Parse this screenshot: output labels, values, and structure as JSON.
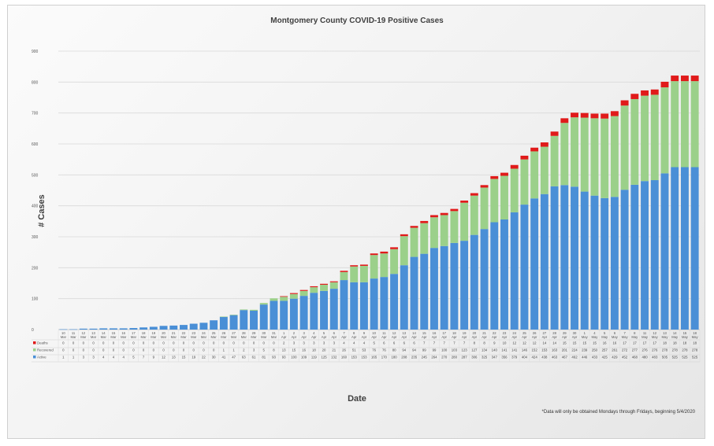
{
  "chart_data": {
    "type": "bar",
    "stacked": true,
    "title": "Montgomery County COVID-19 Positive Cases",
    "ylabel": "# Cases",
    "xlabel": "Date",
    "note": "*Data will only be obtained Mondays through Fridays, beginning 5/4/2020",
    "ylim": [
      0,
      900
    ],
    "yticks": [
      0,
      100,
      200,
      300,
      400,
      500,
      600,
      700,
      800,
      900
    ],
    "grid": true,
    "legend": "table-below",
    "categories": [
      {
        "day": "10",
        "month": "Mar"
      },
      {
        "day": "11",
        "month": "Mar"
      },
      {
        "day": "12",
        "month": "Mar"
      },
      {
        "day": "13",
        "month": "Mar"
      },
      {
        "day": "14",
        "month": "Mar"
      },
      {
        "day": "15",
        "month": "Mar"
      },
      {
        "day": "16",
        "month": "Mar"
      },
      {
        "day": "17",
        "month": "Mar"
      },
      {
        "day": "18",
        "month": "Mar"
      },
      {
        "day": "19",
        "month": "Mar"
      },
      {
        "day": "20",
        "month": "Mar"
      },
      {
        "day": "21",
        "month": "Mar"
      },
      {
        "day": "22",
        "month": "Mar"
      },
      {
        "day": "23",
        "month": "Mar"
      },
      {
        "day": "24",
        "month": "Mar"
      },
      {
        "day": "25",
        "month": "Mar"
      },
      {
        "day": "26",
        "month": "Mar"
      },
      {
        "day": "27",
        "month": "Mar"
      },
      {
        "day": "28",
        "month": "Mar"
      },
      {
        "day": "29",
        "month": "Mar"
      },
      {
        "day": "30",
        "month": "Mar"
      },
      {
        "day": "31",
        "month": "Mar"
      },
      {
        "day": "1",
        "month": "Apr"
      },
      {
        "day": "2",
        "month": "Apr"
      },
      {
        "day": "3",
        "month": "Apr"
      },
      {
        "day": "4",
        "month": "Apr"
      },
      {
        "day": "5",
        "month": "Apr"
      },
      {
        "day": "6",
        "month": "Apr"
      },
      {
        "day": "7",
        "month": "Apr"
      },
      {
        "day": "8",
        "month": "Apr"
      },
      {
        "day": "9",
        "month": "Apr"
      },
      {
        "day": "10",
        "month": "Apr"
      },
      {
        "day": "11",
        "month": "Apr"
      },
      {
        "day": "12",
        "month": "Apr"
      },
      {
        "day": "13",
        "month": "Apr"
      },
      {
        "day": "14",
        "month": "Apr"
      },
      {
        "day": "15",
        "month": "Apr"
      },
      {
        "day": "16",
        "month": "Apr"
      },
      {
        "day": "17",
        "month": "Apr"
      },
      {
        "day": "18",
        "month": "Apr"
      },
      {
        "day": "19",
        "month": "Apr"
      },
      {
        "day": "20",
        "month": "Apr"
      },
      {
        "day": "21",
        "month": "Apr"
      },
      {
        "day": "22",
        "month": "Apr"
      },
      {
        "day": "23",
        "month": "Apr"
      },
      {
        "day": "24",
        "month": "Apr"
      },
      {
        "day": "25",
        "month": "Apr"
      },
      {
        "day": "26",
        "month": "Apr"
      },
      {
        "day": "27",
        "month": "Apr"
      },
      {
        "day": "28",
        "month": "Apr"
      },
      {
        "day": "29",
        "month": "Apr"
      },
      {
        "day": "30",
        "month": "Apr"
      },
      {
        "day": "1",
        "month": "May"
      },
      {
        "day": "4",
        "month": "May"
      },
      {
        "day": "5",
        "month": "May"
      },
      {
        "day": "6",
        "month": "May"
      },
      {
        "day": "7",
        "month": "May"
      },
      {
        "day": "8",
        "month": "May"
      },
      {
        "day": "11",
        "month": "May"
      },
      {
        "day": "12",
        "month": "May"
      },
      {
        "day": "13",
        "month": "May"
      },
      {
        "day": "14",
        "month": "May"
      },
      {
        "day": "15",
        "month": "May"
      },
      {
        "day": "18",
        "month": "May"
      }
    ],
    "series": [
      {
        "name": "Active",
        "color": "#4a8fd6",
        "values": [
          1,
          1,
          3,
          3,
          4,
          4,
          4,
          5,
          7,
          9,
          12,
          13,
          15,
          19,
          22,
          30,
          41,
          47,
          63,
          61,
          81,
          93,
          93,
          100,
          109,
          119,
          125,
          132,
          160,
          153,
          153,
          165,
          170,
          180,
          208,
          235,
          245,
          264,
          270,
          280,
          287,
          306,
          325,
          347,
          356,
          379,
          404,
          424,
          438,
          463,
          467,
          462,
          446,
          433,
          425,
          429,
          452,
          468,
          480,
          483,
          505,
          525,
          525,
          525
        ]
      },
      {
        "name": "Recovered",
        "color": "#9bd08a",
        "values": [
          0,
          0,
          0,
          0,
          0,
          0,
          0,
          0,
          0,
          0,
          0,
          0,
          0,
          0,
          0,
          0,
          1,
          1,
          2,
          3,
          5,
          8,
          13,
          15,
          16,
          18,
          20,
          21,
          26,
          51,
          53,
          76,
          76,
          80,
          94,
          94,
          99,
          99,
          100,
          103,
          123,
          127,
          134,
          140,
          141,
          141,
          146,
          152,
          153,
          163,
          201,
          224,
          239,
          250,
          257,
          261,
          272,
          277,
          276,
          276,
          278,
          278,
          278,
          278
        ]
      },
      {
        "name": "Deaths",
        "color": "#e01a1a",
        "values": [
          0,
          0,
          0,
          0,
          0,
          0,
          0,
          0,
          0,
          0,
          0,
          0,
          0,
          0,
          0,
          0,
          0,
          0,
          0,
          0,
          0,
          0,
          2,
          3,
          3,
          3,
          3,
          3,
          4,
          4,
          4,
          5,
          6,
          6,
          6,
          6,
          7,
          7,
          7,
          7,
          7,
          8,
          8,
          9,
          10,
          12,
          12,
          12,
          14,
          14,
          15,
          15,
          15,
          15,
          16,
          16,
          17,
          17,
          17,
          17,
          18,
          18,
          18,
          18
        ]
      }
    ],
    "totals_estimated": [
      1,
      1,
      3,
      3,
      4,
      4,
      4,
      5,
      7,
      9,
      12,
      13,
      15,
      19,
      22,
      30,
      42,
      48,
      65,
      72,
      84,
      104,
      108,
      118,
      128,
      140,
      148,
      156,
      195,
      205,
      223,
      245,
      248,
      258,
      306,
      328,
      345,
      360,
      370,
      387,
      410,
      430,
      458,
      478,
      493,
      515,
      540,
      571,
      590,
      612,
      625,
      630,
      643,
      652,
      670,
      681,
      701,
      720,
      742,
      758,
      779,
      800,
      800,
      815
    ]
  }
}
